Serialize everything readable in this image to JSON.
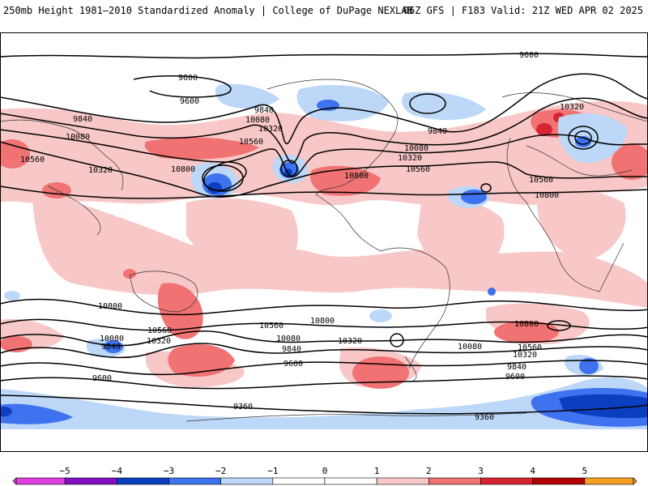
{
  "header": {
    "title": "250mb Height 1981–2010 Standardized Anomaly | College of DuPage NEXLAB",
    "run_info": "06Z GFS | F183 Valid: 21Z WED APR 02 2025"
  },
  "colors": {
    "n5": "#e040e0",
    "n4": "#8010c0",
    "n3": "#0b3fc0",
    "n2": "#3f72ee",
    "n1": "#bcd7f7",
    "zero": "#ffffff",
    "p1": "#f8c7c8",
    "p2": "#f07272",
    "p3": "#d82430",
    "p4": "#b00000",
    "p5": "#f5a020"
  },
  "legend": {
    "ticks": [
      "−5",
      "−4",
      "−3",
      "−2",
      "−1",
      "0",
      "1",
      "2",
      "3",
      "4",
      "5"
    ]
  },
  "contour_labels": [
    {
      "id": "c9600-a",
      "text": "9600"
    },
    {
      "id": "c9600-b",
      "text": "9600"
    },
    {
      "id": "c9600-c",
      "text": "9600"
    },
    {
      "id": "c9840-a",
      "text": "9840"
    },
    {
      "id": "c9840-b",
      "text": "9840"
    },
    {
      "id": "c9840-c",
      "text": "9840"
    },
    {
      "id": "c10080-a",
      "text": "10080"
    },
    {
      "id": "c10080-b",
      "text": "10080"
    },
    {
      "id": "c10080-c",
      "text": "10080"
    },
    {
      "id": "c10320-a",
      "text": "10320"
    },
    {
      "id": "c10320-b",
      "text": "10320"
    },
    {
      "id": "c10320-c",
      "text": "10320"
    },
    {
      "id": "c10320-d",
      "text": "10320"
    },
    {
      "id": "c10560-a",
      "text": "10560"
    },
    {
      "id": "c10560-b",
      "text": "10560"
    },
    {
      "id": "c10560-c",
      "text": "10560"
    },
    {
      "id": "c10560-d",
      "text": "10560"
    },
    {
      "id": "c10800-a",
      "text": "10800"
    },
    {
      "id": "c10800-b",
      "text": "10800"
    },
    {
      "id": "c10800-c",
      "text": "10800"
    },
    {
      "id": "s10800-a",
      "text": "10800"
    },
    {
      "id": "s10560-a",
      "text": "10560"
    },
    {
      "id": "s10560-b",
      "text": "10560"
    },
    {
      "id": "s10320-a",
      "text": "10320"
    },
    {
      "id": "s10320-b",
      "text": "10320"
    },
    {
      "id": "s10320-c",
      "text": "10320"
    },
    {
      "id": "s10080-a",
      "text": "10080"
    },
    {
      "id": "s10080-b",
      "text": "10080"
    },
    {
      "id": "s9840-a",
      "text": "9840"
    },
    {
      "id": "s9840-b",
      "text": "9840"
    },
    {
      "id": "s9840-c",
      "text": "9840"
    },
    {
      "id": "s9600-a",
      "text": "9600"
    },
    {
      "id": "s9600-b",
      "text": "9600"
    },
    {
      "id": "s9600-c",
      "text": "9600"
    },
    {
      "id": "s9360-a",
      "text": "9360"
    },
    {
      "id": "s9360-b",
      "text": "9360"
    },
    {
      "id": "s10800-b",
      "text": "10800"
    },
    {
      "id": "s10560-c",
      "text": "10560"
    },
    {
      "id": "s10800-c",
      "text": "10800"
    },
    {
      "id": "s10080-c",
      "text": "10080"
    }
  ]
}
